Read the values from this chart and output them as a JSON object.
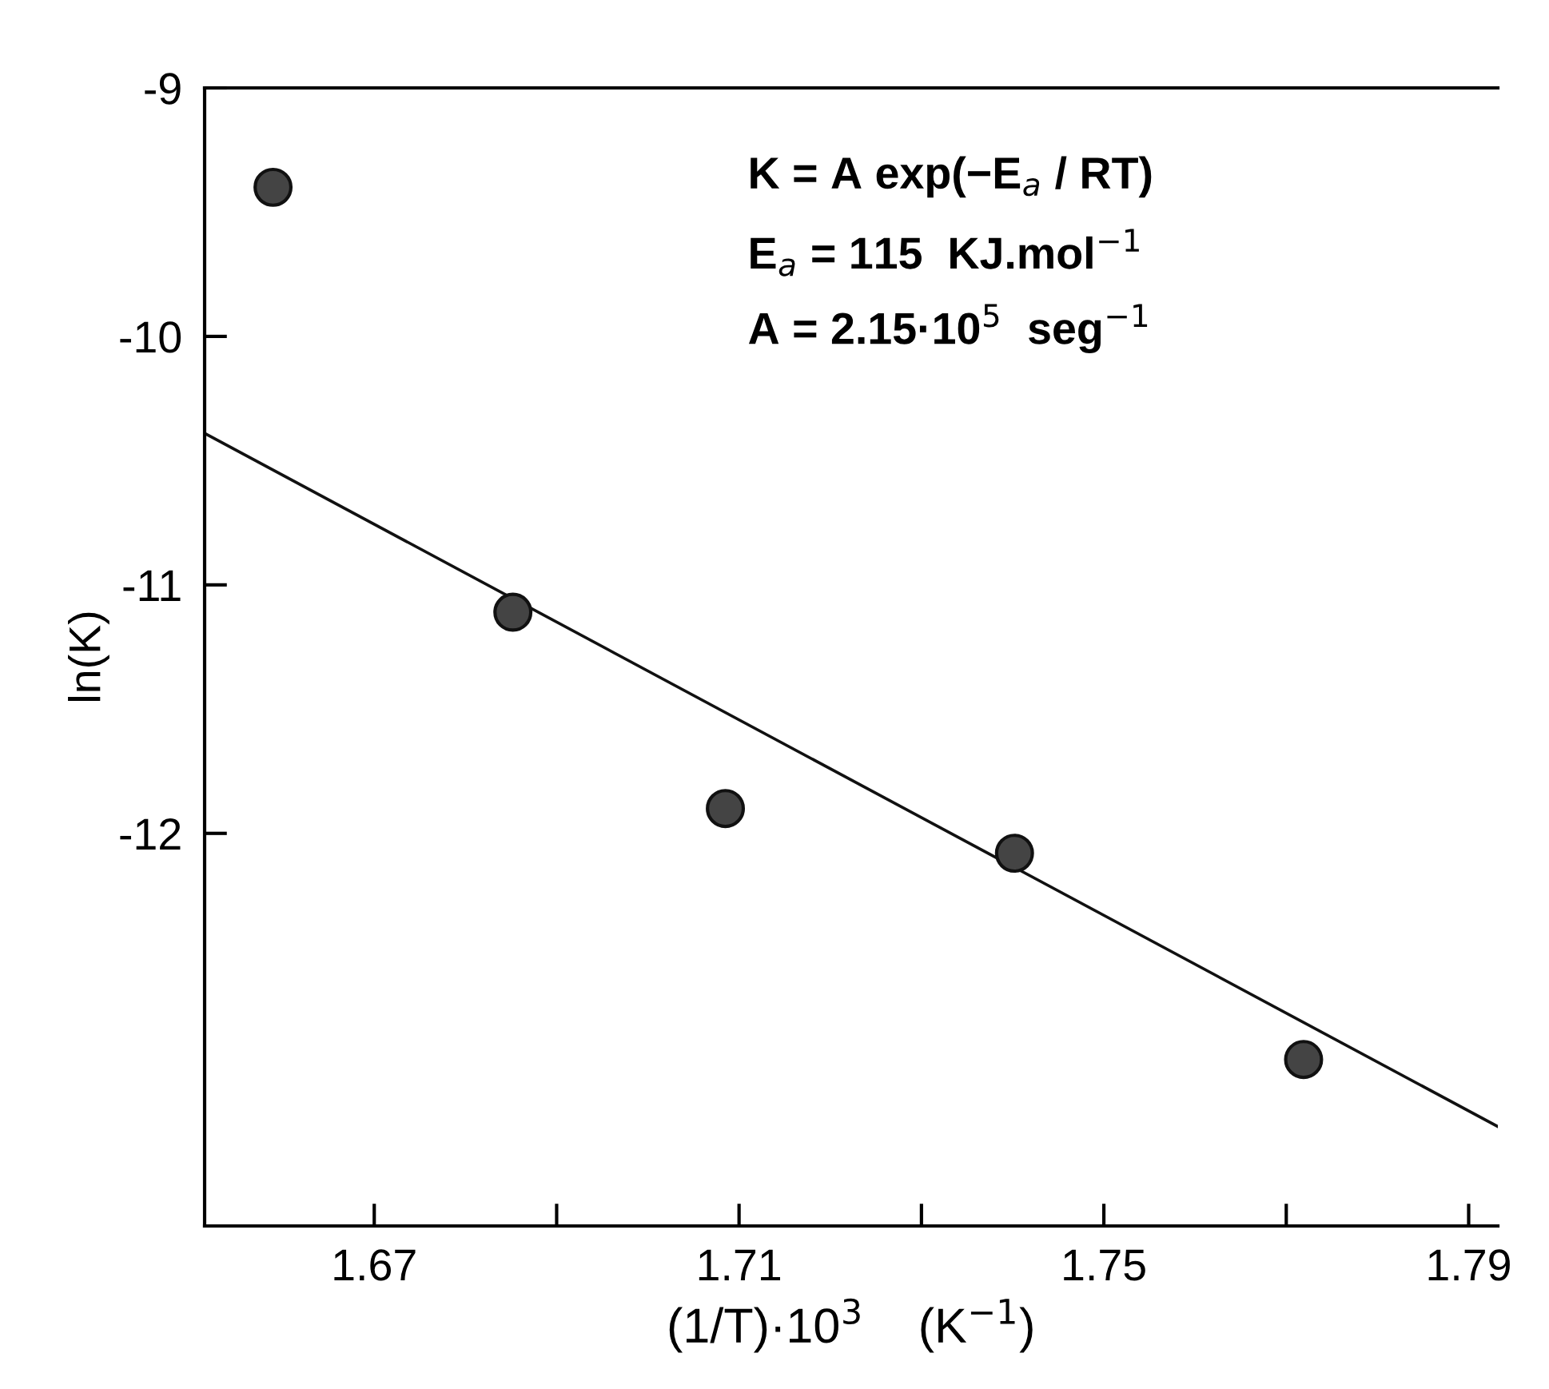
{
  "chart_data": {
    "type": "scatter",
    "xlabel": "(1/T)·10$^{3}$    (K$^{−1}$)",
    "ylabel": "ln(K)",
    "annotations": [
      "K = A exp(−E$_{a}$ / RT)",
      "E$_{a}$ = 115  KJ.mol$^{−1}$",
      "A = 2.15·10$^{5}$  seg$^{−1}$"
    ],
    "xlim": [
      1.6514,
      1.7932
    ],
    "ylim": [
      -13.58,
      -9
    ],
    "xticks": [
      1.67,
      {
        "value": 1.69,
        "label": null
      },
      1.71,
      {
        "value": 1.73,
        "label": null
      },
      1.75,
      {
        "value": 1.77,
        "label": null
      },
      1.79
    ],
    "yticks": [
      -9,
      -10,
      -11,
      -12
    ],
    "grid": false,
    "legend": false,
    "series": [
      {
        "color": "#444444",
        "marker": "circle",
        "x": [
          1.6589,
          1.6852,
          1.7085,
          1.7402,
          1.7719
        ],
        "values": [
          -9.4,
          -11.11,
          -11.9,
          -12.08,
          -12.91
        ]
      },
      {
        "type": "line",
        "color": "#111111",
        "marker": "none",
        "line_style": "solid",
        "x": [
          1.6514,
          1.7932
        ],
        "values": [
          -10.39,
          -13.18
        ]
      }
    ]
  }
}
